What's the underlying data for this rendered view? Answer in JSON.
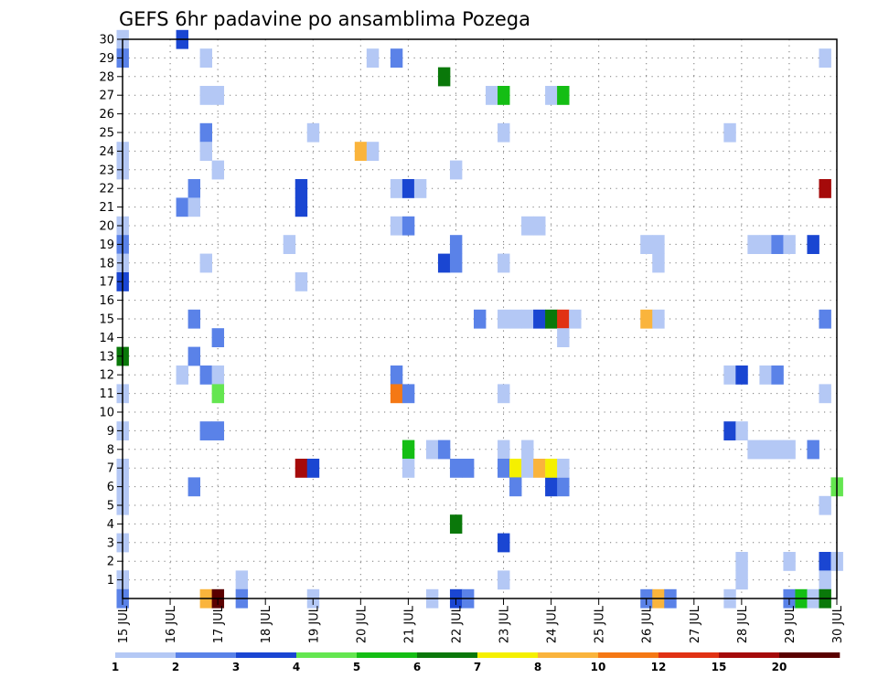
{
  "chart_data": {
    "type": "heatmap",
    "title": "GEFS 6hr padavine po ansamblima Pozega",
    "y_ticks": [
      "1",
      "2",
      "3",
      "4",
      "5",
      "6",
      "7",
      "8",
      "9",
      "10",
      "11",
      "12",
      "13",
      "14",
      "15",
      "16",
      "17",
      "18",
      "19",
      "20",
      "21",
      "22",
      "23",
      "24",
      "25",
      "26",
      "27",
      "28",
      "29",
      "30"
    ],
    "ylim": [
      0,
      30
    ],
    "x_ticks": [
      "15 JUL",
      "16 JUL",
      "17 JUL",
      "18 JUL",
      "19 JUL",
      "20 JUL",
      "21 JUL",
      "22 JUL",
      "23 JUL",
      "24 JUL",
      "25 JUL",
      "26 JUL",
      "27 JUL",
      "28 JUL",
      "29 JUL",
      "30 JUL"
    ],
    "xlim": [
      0,
      60
    ],
    "grid": true,
    "colorbar": {
      "position": "bottom",
      "labels": [
        "1",
        "2",
        "3",
        "4",
        "5",
        "6",
        "7",
        "8",
        "10",
        "12",
        "15",
        "20"
      ],
      "colors": [
        "#b4c8f5",
        "#5a82e8",
        "#1a46d2",
        "#64e650",
        "#14be14",
        "#0a780a",
        "#f5f000",
        "#fab43c",
        "#f57814",
        "#e13214",
        "#a50a0a",
        "#5a0000"
      ]
    },
    "cells": [
      [
        0,
        1,
        2
      ],
      [
        0,
        30,
        1
      ],
      [
        0,
        29,
        2
      ],
      [
        0,
        24,
        1
      ],
      [
        0,
        23,
        1
      ],
      [
        0,
        20,
        1
      ],
      [
        0,
        19,
        2
      ],
      [
        0,
        18,
        1
      ],
      [
        0,
        17,
        3
      ],
      [
        0,
        13,
        6
      ],
      [
        0,
        11,
        1
      ],
      [
        0,
        9,
        1
      ],
      [
        0,
        7,
        1
      ],
      [
        0,
        6,
        1
      ],
      [
        0,
        5,
        1
      ],
      [
        0,
        3,
        1
      ],
      [
        0,
        1,
        1
      ],
      [
        0,
        0,
        2
      ],
      [
        5,
        30,
        3
      ],
      [
        6,
        22,
        2
      ],
      [
        6,
        15,
        2
      ],
      [
        6,
        13,
        2
      ],
      [
        6,
        6,
        2
      ],
      [
        5,
        12,
        1
      ],
      [
        7,
        12,
        2
      ],
      [
        8,
        12,
        1
      ],
      [
        5,
        21,
        2
      ],
      [
        6,
        21,
        1
      ],
      [
        7,
        29,
        1
      ],
      [
        7,
        27,
        1
      ],
      [
        8,
        27,
        1
      ],
      [
        7,
        25,
        2
      ],
      [
        7,
        24,
        1
      ],
      [
        7,
        18,
        1
      ],
      [
        7,
        14,
        13
      ],
      [
        7,
        9,
        2
      ],
      [
        8,
        9,
        2
      ],
      [
        7,
        0,
        8
      ],
      [
        8,
        23,
        1
      ],
      [
        8,
        14,
        2
      ],
      [
        8,
        11,
        4
      ],
      [
        8,
        0,
        12
      ],
      [
        10,
        1,
        1
      ],
      [
        10,
        0,
        2
      ],
      [
        14,
        19,
        1
      ],
      [
        15,
        21,
        3
      ],
      [
        15,
        22,
        3
      ],
      [
        15,
        17,
        1
      ],
      [
        15,
        7,
        11
      ],
      [
        16,
        7,
        3
      ],
      [
        16,
        25,
        1
      ],
      [
        16,
        0,
        1
      ],
      [
        20,
        24,
        8
      ],
      [
        21,
        24,
        1
      ],
      [
        21,
        29,
        1
      ],
      [
        23,
        29,
        2
      ],
      [
        23,
        22,
        1
      ],
      [
        23,
        20,
        1
      ],
      [
        24,
        22,
        3
      ],
      [
        24,
        20,
        2
      ],
      [
        25,
        22,
        1
      ],
      [
        23,
        12,
        2
      ],
      [
        23,
        11,
        9
      ],
      [
        24,
        11,
        2
      ],
      [
        24,
        8,
        5
      ],
      [
        24,
        7,
        1
      ],
      [
        26,
        8,
        1
      ],
      [
        27,
        8,
        2
      ],
      [
        26,
        0,
        1
      ],
      [
        27,
        28,
        6
      ],
      [
        27,
        18,
        3
      ],
      [
        28,
        23,
        1
      ],
      [
        28,
        19,
        2
      ],
      [
        28,
        18,
        2
      ],
      [
        28,
        4,
        6
      ],
      [
        28,
        7,
        2
      ],
      [
        29,
        7,
        2
      ],
      [
        28,
        0,
        3
      ],
      [
        29,
        0,
        2
      ],
      [
        30,
        15,
        2
      ],
      [
        31,
        27,
        1
      ],
      [
        32,
        27,
        5
      ],
      [
        32,
        25,
        1
      ],
      [
        32,
        18,
        1
      ],
      [
        32,
        15,
        1
      ],
      [
        32,
        11,
        1
      ],
      [
        32,
        8,
        1
      ],
      [
        32,
        7,
        2
      ],
      [
        32,
        3,
        3
      ],
      [
        32,
        1,
        1
      ],
      [
        33,
        15,
        1
      ],
      [
        33,
        7,
        7
      ],
      [
        33,
        6,
        2
      ],
      [
        34,
        15,
        1
      ],
      [
        34,
        20,
        1
      ],
      [
        35,
        20,
        1
      ],
      [
        34,
        8,
        1
      ],
      [
        34,
        7,
        1
      ],
      [
        35,
        15,
        3
      ],
      [
        35,
        7,
        8
      ],
      [
        36,
        15,
        6
      ],
      [
        36,
        7,
        1
      ],
      [
        36,
        27,
        1
      ],
      [
        37,
        27,
        5
      ],
      [
        37,
        15,
        10
      ],
      [
        37,
        14,
        1
      ],
      [
        36,
        6,
        3
      ],
      [
        37,
        6,
        2
      ],
      [
        36,
        7,
        7
      ],
      [
        37,
        7,
        1
      ],
      [
        38,
        15,
        1
      ],
      [
        44,
        19,
        1
      ],
      [
        45,
        19,
        1
      ],
      [
        45,
        18,
        1
      ],
      [
        44,
        15,
        8
      ],
      [
        44,
        0,
        2
      ],
      [
        45,
        15,
        1
      ],
      [
        45,
        0,
        8
      ],
      [
        46,
        0,
        2
      ],
      [
        51,
        25,
        1
      ],
      [
        51,
        12,
        1
      ],
      [
        52,
        12,
        3
      ],
      [
        51,
        9,
        3
      ],
      [
        52,
        9,
        1
      ],
      [
        51,
        0,
        1
      ],
      [
        52,
        2,
        1
      ],
      [
        52,
        1,
        1
      ],
      [
        53,
        19,
        1
      ],
      [
        53,
        8,
        1
      ],
      [
        54,
        19,
        1
      ],
      [
        55,
        19,
        2
      ],
      [
        54,
        12,
        1
      ],
      [
        55,
        12,
        2
      ],
      [
        54,
        8,
        1
      ],
      [
        55,
        8,
        1
      ],
      [
        56,
        8,
        1
      ],
      [
        56,
        19,
        1
      ],
      [
        56,
        0,
        2
      ],
      [
        56,
        2,
        1
      ],
      [
        57,
        0,
        5
      ],
      [
        58,
        0,
        1
      ],
      [
        58,
        19,
        3
      ],
      [
        58,
        8,
        2
      ],
      [
        59,
        29,
        1
      ],
      [
        59,
        15,
        2
      ],
      [
        59,
        11,
        1
      ],
      [
        59,
        5,
        1
      ],
      [
        59,
        2,
        3
      ],
      [
        59,
        1,
        1
      ],
      [
        59,
        0,
        6
      ],
      [
        59,
        22,
        11
      ],
      [
        60,
        6,
        4
      ],
      [
        60,
        2,
        1
      ]
    ]
  }
}
